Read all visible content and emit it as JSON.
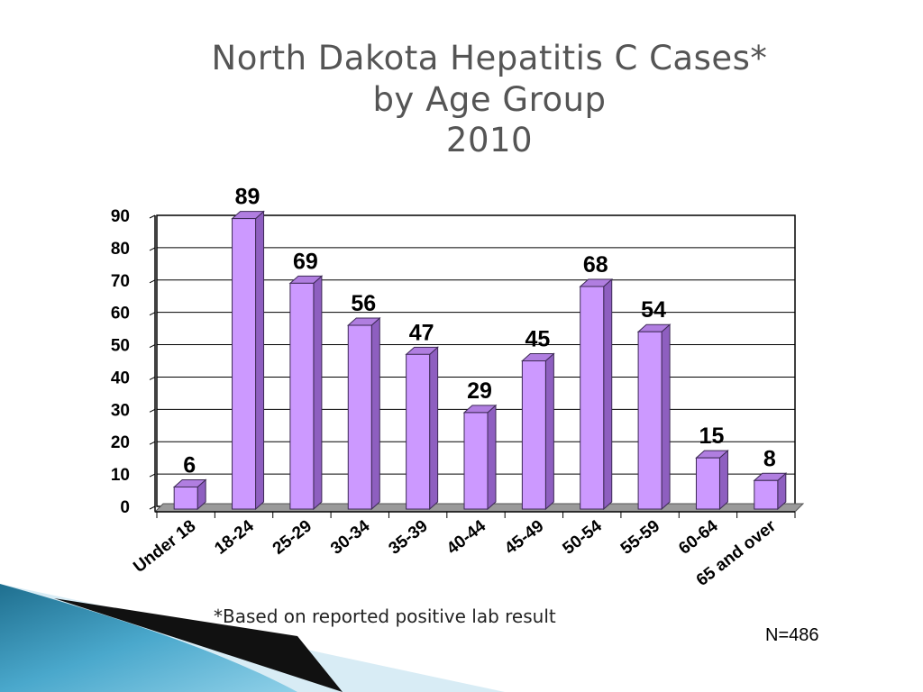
{
  "slide": {
    "title_lines": [
      "North Dakota Hepatitis C Cases*",
      "by Age Group",
      "2010"
    ],
    "footnote": "*Based on reported positive lab result",
    "n_label": "N=486"
  },
  "chart_data": {
    "type": "bar",
    "style": "3d",
    "categories": [
      "Under 18",
      "18-24",
      "25-29",
      "30-34",
      "35-39",
      "40-44",
      "45-49",
      "50-54",
      "55-59",
      "60-64",
      "65 and over"
    ],
    "values": [
      6,
      89,
      69,
      56,
      47,
      29,
      45,
      68,
      54,
      15,
      8
    ],
    "ylim": [
      0,
      90
    ],
    "yticks": [
      0,
      10,
      20,
      30,
      40,
      50,
      60,
      70,
      80,
      90
    ],
    "grid": true,
    "data_labels": true,
    "bar_color": "#cc99ff",
    "bar_side_color": "#8e5fc0",
    "bar_top_color": "#b07ee0"
  }
}
